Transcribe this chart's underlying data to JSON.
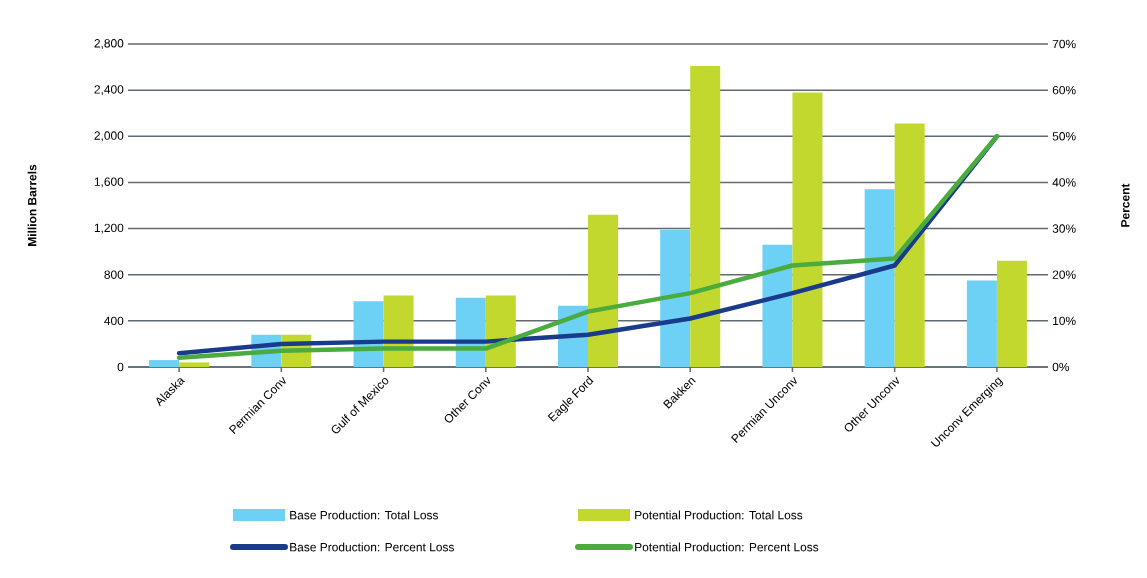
{
  "chart_data": {
    "type": "bar",
    "ylabel": "Million Barrels",
    "y2label": "Percent",
    "categories": [
      "Alaska",
      "Permian Conv",
      "Gulf of Mexico",
      "Other Conv",
      "Eagle Ford",
      "Bakken",
      "Permian Unconv",
      "Other Unconv",
      "Unconv Emerging"
    ],
    "series": [
      {
        "name": "Base Production: Total Loss",
        "color": "#6dd0f5",
        "values": [
          60,
          280,
          570,
          600,
          530,
          1190,
          1060,
          1540,
          750
        ]
      },
      {
        "name": "Potential Production: Total Loss",
        "color": "#c2d82e",
        "values": [
          40,
          280,
          620,
          620,
          1320,
          2610,
          2380,
          2110,
          920
        ]
      },
      {
        "name": "Base Production: Percent Loss",
        "type": "line",
        "axis": "y2",
        "color": "#1a3a8c",
        "values": [
          3,
          5,
          5.5,
          5.5,
          7,
          10.5,
          16,
          22,
          50
        ]
      },
      {
        "name": "Potential Production: Percent Loss",
        "type": "line",
        "axis": "y2",
        "color": "#4aab3f",
        "values": [
          2,
          3.5,
          4,
          4,
          12,
          16,
          22,
          23.5,
          50
        ]
      }
    ],
    "ylim": [
      0,
      2800
    ],
    "yticks": [
      0,
      400,
      800,
      {
        "value": 1200,
        "label": "1,200"
      },
      {
        "value": 1600,
        "label": "1,600"
      },
      {
        "value": 2000,
        "label": "2,000"
      },
      {
        "value": 2400,
        "label": "2,400"
      },
      {
        "value": 2800,
        "label": "2,800"
      }
    ],
    "y2lim": [
      0,
      70
    ],
    "y2ticks": [
      {
        "value": 0,
        "label": "0%"
      },
      {
        "value": 10,
        "label": "10%"
      },
      {
        "value": 20,
        "label": "20%"
      },
      {
        "value": 30,
        "label": "30%"
      },
      {
        "value": 40,
        "label": "40%"
      },
      {
        "value": 50,
        "label": "50%"
      },
      {
        "value": 60,
        "label": "60%"
      },
      {
        "value": 70,
        "label": "70%"
      }
    ],
    "grid": "y",
    "legend": "bottom"
  }
}
